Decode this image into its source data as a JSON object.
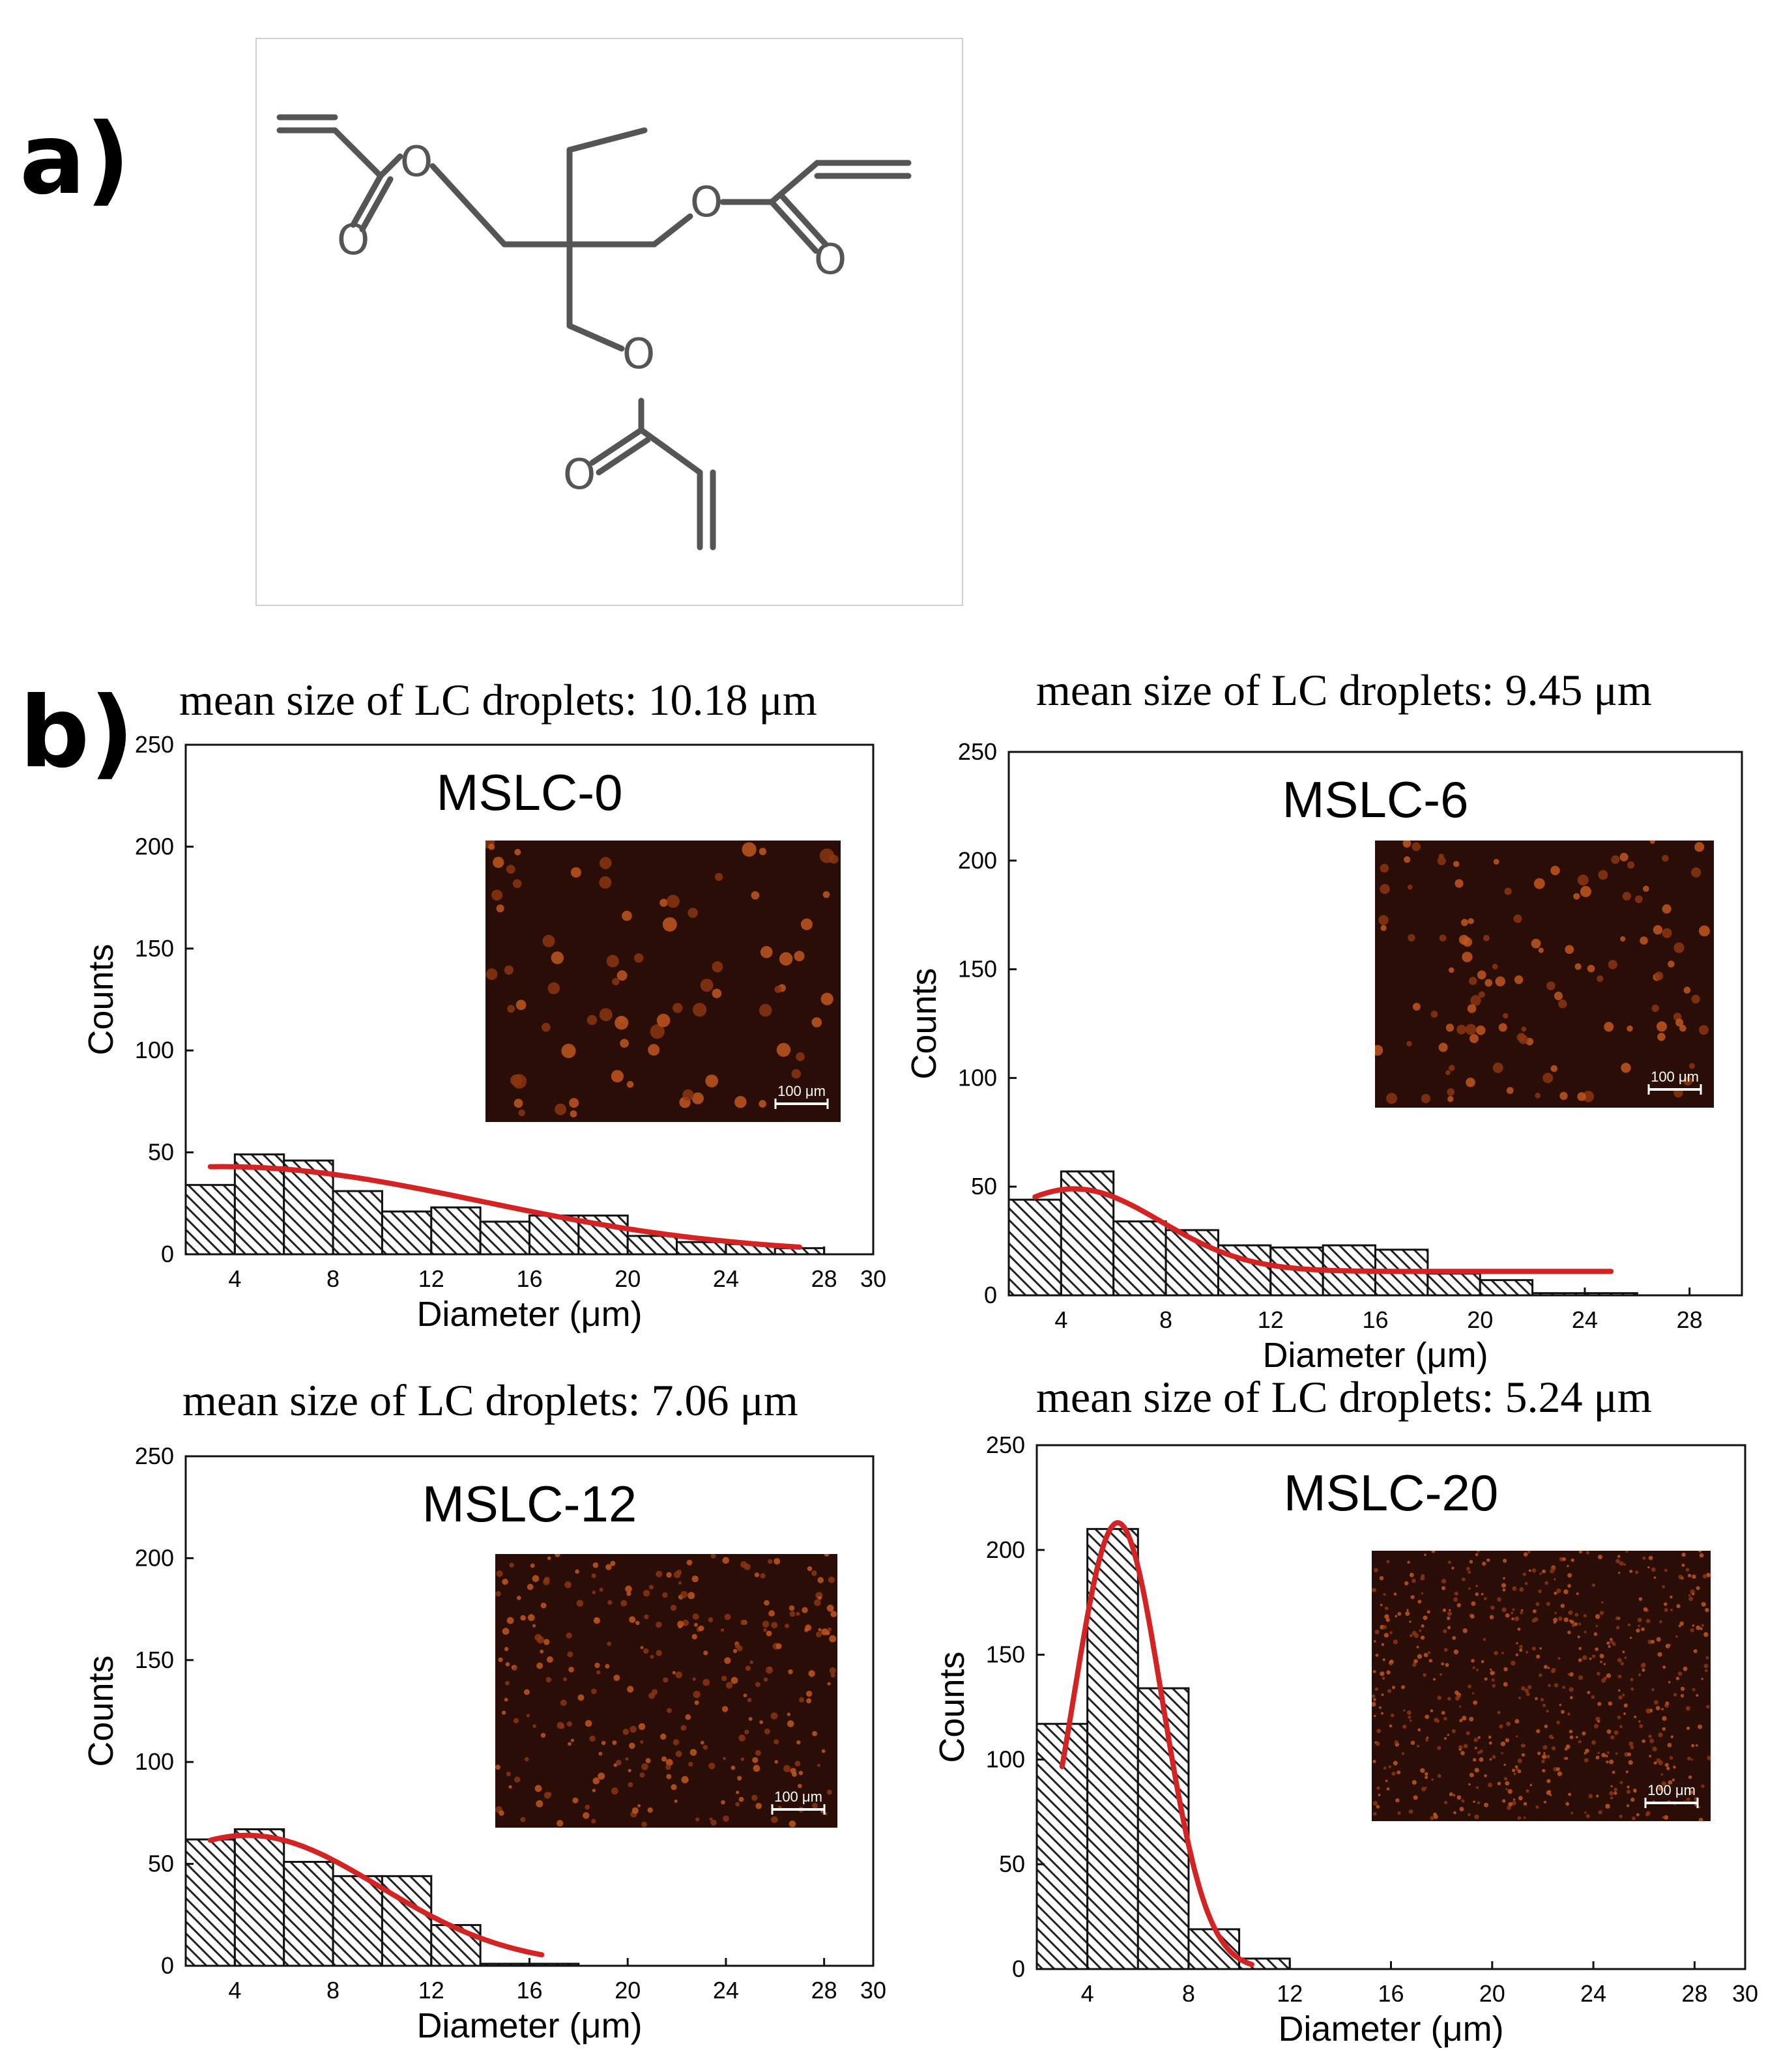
{
  "figure": {
    "label_a": "a)",
    "label_b": "b)"
  },
  "molecule": {
    "atoms": [
      "O",
      "O",
      "O",
      "O",
      "O",
      "O"
    ]
  },
  "chart_data": [
    {
      "type": "bar",
      "name": "MSLC-0",
      "title": "mean size of LC droplets: 10.18 μm",
      "sample_label": "MSLC-0",
      "xlabel": "Diameter (μm)",
      "ylabel": "Counts",
      "xlim": [
        2,
        30
      ],
      "ylim": [
        0,
        250
      ],
      "xticks": [
        4,
        8,
        12,
        16,
        20,
        24,
        28,
        30
      ],
      "yticks": [
        0,
        50,
        100,
        150,
        200,
        250
      ],
      "bin_width": 2,
      "bins": [
        3,
        5,
        7,
        9,
        11,
        13,
        15,
        17,
        19,
        21,
        23,
        25,
        27
      ],
      "values": [
        34,
        49,
        46,
        31,
        21,
        23,
        16,
        19,
        19,
        9,
        6,
        5,
        3
      ],
      "fit": {
        "type": "gaussian",
        "amplitude": 43,
        "center": 3.5,
        "sigma": 10.5,
        "x_range": [
          3,
          27
        ]
      },
      "inset": {
        "scale_bar": "100 μm",
        "droplet_size": "large"
      },
      "fit_color": "#d42323"
    },
    {
      "type": "bar",
      "name": "MSLC-6",
      "title": "mean size of LC droplets: 9.45 μm",
      "sample_label": "MSLC-6",
      "xlabel": "Diameter (μm)",
      "ylabel": "Counts",
      "xlim": [
        2,
        30
      ],
      "ylim": [
        0,
        250
      ],
      "xticks": [
        4,
        8,
        12,
        16,
        20,
        24,
        28
      ],
      "yticks": [
        0,
        50,
        100,
        150,
        200,
        250
      ],
      "bin_width": 2,
      "bins": [
        3,
        5,
        7,
        9,
        11,
        13,
        15,
        17,
        19,
        21,
        23,
        25
      ],
      "values": [
        44,
        57,
        34,
        30,
        23,
        22,
        23,
        21,
        10,
        7,
        1,
        1
      ],
      "fit": {
        "type": "gaussian_offset",
        "amplitude": 38,
        "center": 4.5,
        "sigma": 3.3,
        "offset": 11,
        "x_range": [
          3,
          25
        ]
      },
      "inset": {
        "scale_bar": "100 μm",
        "droplet_size": "medium"
      },
      "fit_color": "#d42323"
    },
    {
      "type": "bar",
      "name": "MSLC-12",
      "title": "mean size of LC droplets: 7.06 μm",
      "sample_label": "MSLC-12",
      "xlabel": "Diameter (μm)",
      "ylabel": "Counts",
      "xlim": [
        2,
        30
      ],
      "ylim": [
        0,
        250
      ],
      "xticks": [
        4,
        8,
        12,
        16,
        20,
        24,
        28,
        30
      ],
      "yticks": [
        0,
        50,
        100,
        150,
        200,
        250
      ],
      "bin_width": 2,
      "bins": [
        3,
        5,
        7,
        9,
        11,
        13,
        15,
        17
      ],
      "values": [
        62,
        67,
        51,
        44,
        44,
        20,
        1,
        1
      ],
      "fit": {
        "type": "gaussian",
        "amplitude": 64,
        "center": 4.5,
        "sigma": 5.4,
        "x_range": [
          3,
          16.5
        ]
      },
      "inset": {
        "scale_bar": "100 μm",
        "droplet_size": "small"
      },
      "fit_color": "#d42323"
    },
    {
      "type": "bar",
      "name": "MSLC-20",
      "title": "mean size of LC droplets: 5.24 μm",
      "sample_label": "MSLC-20",
      "xlabel": "Diameter (μm)",
      "ylabel": "Counts",
      "xlim": [
        2,
        30
      ],
      "ylim": [
        0,
        250
      ],
      "xticks": [
        4,
        8,
        12,
        16,
        20,
        24,
        28,
        30
      ],
      "yticks": [
        0,
        50,
        100,
        150,
        200,
        250
      ],
      "bin_width": 2,
      "bins": [
        3,
        5,
        7,
        9,
        11
      ],
      "values": [
        117,
        210,
        134,
        19,
        5
      ],
      "fit": {
        "type": "gaussian",
        "amplitude": 213,
        "center": 5.2,
        "sigma": 1.75,
        "x_range": [
          3,
          10.5
        ]
      },
      "inset": {
        "scale_bar": "100 μm",
        "droplet_size": "tiny"
      },
      "fit_color": "#d42323"
    }
  ]
}
